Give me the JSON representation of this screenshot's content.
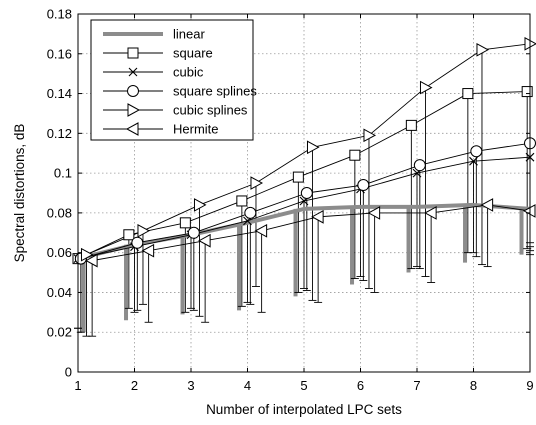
{
  "chart_data": {
    "type": "line",
    "title": "",
    "xlabel": "Number of interpolated LPC sets",
    "ylabel": "Spectral distortions, dB",
    "xlim": [
      1,
      9
    ],
    "ylim": [
      0,
      0.18
    ],
    "xticks": [
      1,
      2,
      3,
      4,
      5,
      6,
      7,
      8,
      9
    ],
    "yticks": [
      0,
      0.02,
      0.04,
      0.06,
      0.08,
      0.1,
      0.12,
      0.14,
      0.16,
      0.18
    ],
    "ytick_labels": [
      "0",
      "0.02",
      "0.04",
      "0.06",
      "0.08",
      "0.1",
      "0.12",
      "0.14",
      "0.16",
      "0.18"
    ],
    "grid": true,
    "legend_position": "top-left",
    "error_bars": "lower whiskers at offset x positions",
    "series": [
      {
        "name": "linear",
        "marker": "none",
        "style": "thick-gray",
        "color": "#8c8c8c",
        "x": [
          1,
          2,
          3,
          4,
          5,
          6,
          7,
          8,
          9
        ],
        "y": [
          0.057,
          0.064,
          0.069,
          0.075,
          0.082,
          0.083,
          0.083,
          0.084,
          0.082
        ],
        "error_x": [
          1.1,
          1.85,
          2.85,
          3.85,
          4.85,
          5.85,
          6.85,
          7.85,
          8.85
        ],
        "error_low": [
          0.02,
          0.026,
          0.029,
          0.031,
          0.038,
          0.044,
          0.05,
          0.055,
          0.059
        ]
      },
      {
        "name": "square",
        "marker": "square",
        "color": "#000000",
        "x": [
          1,
          1.9,
          2.9,
          3.9,
          4.9,
          5.9,
          6.9,
          7.9,
          8.95
        ],
        "y": [
          0.057,
          0.069,
          0.075,
          0.086,
          0.098,
          0.109,
          0.124,
          0.14,
          0.141
        ],
        "error_x": [
          1,
          1.9,
          2.9,
          3.9,
          4.9,
          5.9,
          6.9,
          7.9,
          8.95
        ],
        "error_low": [
          0.022,
          0.032,
          0.03,
          0.033,
          0.04,
          0.047,
          0.052,
          0.06,
          0.062
        ]
      },
      {
        "name": "cubic",
        "marker": "x",
        "color": "#000000",
        "x": [
          1,
          2,
          3,
          4,
          5,
          6,
          7,
          8,
          9
        ],
        "y": [
          0.057,
          0.063,
          0.069,
          0.076,
          0.086,
          0.092,
          0.1,
          0.106,
          0.108
        ],
        "error_x": [
          1,
          2,
          3,
          4,
          5,
          6,
          7,
          8,
          9
        ],
        "error_low": [
          0.022,
          0.03,
          0.032,
          0.035,
          0.042,
          0.048,
          0.053,
          0.06,
          0.065
        ]
      },
      {
        "name": "square splines",
        "marker": "circle",
        "color": "#000000",
        "x": [
          1.05,
          2.05,
          3.05,
          4.05,
          5.05,
          6.05,
          7.05,
          8.05,
          9
        ],
        "y": [
          0.057,
          0.065,
          0.07,
          0.08,
          0.09,
          0.094,
          0.104,
          0.111,
          0.115
        ],
        "error_x": [
          1.05,
          2.05,
          3.05,
          4.05,
          5.05,
          6.05,
          7.05,
          8.05,
          9
        ],
        "error_low": [
          0.02,
          0.031,
          0.031,
          0.034,
          0.041,
          0.046,
          0.052,
          0.058,
          0.063
        ]
      },
      {
        "name": "cubic splines",
        "marker": "triangle-right",
        "color": "#000000",
        "x": [
          1.15,
          2.15,
          3.15,
          4.15,
          5.15,
          6.15,
          7.15,
          8.15,
          9
        ],
        "y": [
          0.059,
          0.071,
          0.084,
          0.095,
          0.113,
          0.119,
          0.143,
          0.162,
          0.165
        ],
        "error_x": [
          1.15,
          2.15,
          3.15,
          4.15,
          5.15,
          6.15,
          7.15,
          8.15,
          9
        ],
        "error_low": [
          0.018,
          0.034,
          0.028,
          0.043,
          0.036,
          0.042,
          0.048,
          0.054,
          0.061
        ]
      },
      {
        "name": "Hermite",
        "marker": "triangle-left",
        "color": "#000000",
        "x": [
          1.25,
          2.25,
          3.25,
          4.25,
          5.25,
          6.25,
          7.25,
          8.25,
          9
        ],
        "y": [
          0.056,
          0.061,
          0.066,
          0.071,
          0.078,
          0.08,
          0.08,
          0.084,
          0.081
        ],
        "error_x": [
          1.25,
          2.25,
          3.25,
          4.25,
          5.25,
          6.25,
          7.25,
          8.25,
          9
        ],
        "error_low": [
          0.018,
          0.025,
          0.025,
          0.03,
          0.035,
          0.04,
          0.045,
          0.053,
          0.059
        ]
      }
    ]
  }
}
